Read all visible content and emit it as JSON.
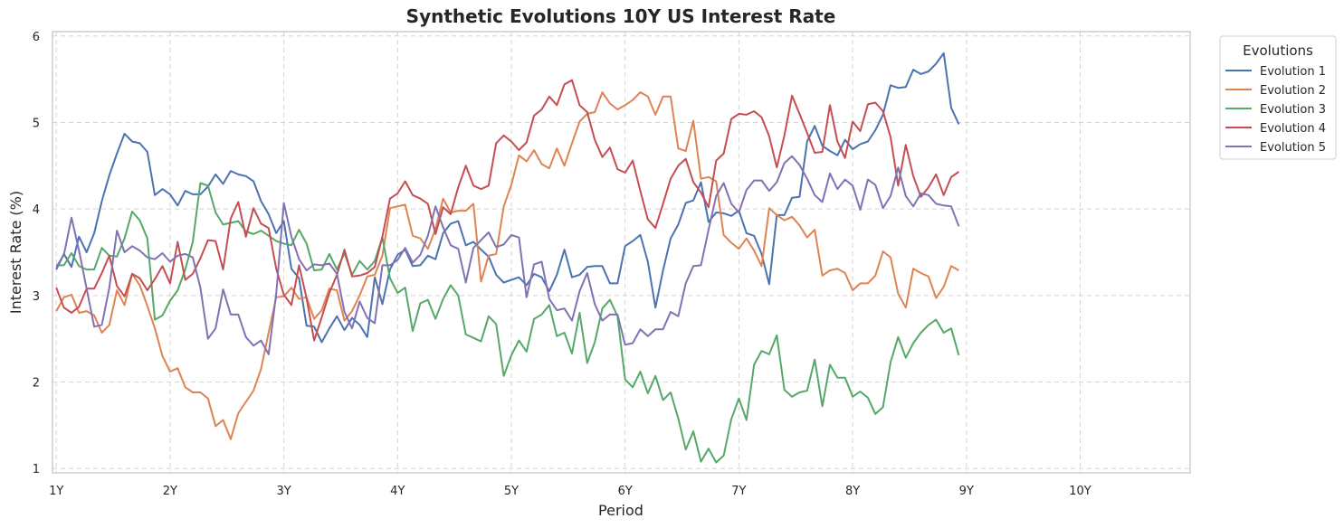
{
  "chart_data": {
    "type": "line",
    "title": "Synthetic Evolutions 10Y US Interest Rate",
    "xlabel": "Period",
    "ylabel": "Interest Rate (%)",
    "xlim": [
      -0.5,
      149.5
    ],
    "ylim": [
      0.95,
      6.05
    ],
    "x_ticks": [
      {
        "pos": 0,
        "label": "1Y"
      },
      {
        "pos": 15,
        "label": "2Y"
      },
      {
        "pos": 30,
        "label": "3Y"
      },
      {
        "pos": 45,
        "label": "4Y"
      },
      {
        "pos": 60,
        "label": "5Y"
      },
      {
        "pos": 75,
        "label": "6Y"
      },
      {
        "pos": 90,
        "label": "7Y"
      },
      {
        "pos": 105,
        "label": "8Y"
      },
      {
        "pos": 120,
        "label": "9Y"
      },
      {
        "pos": 135,
        "label": "10Y"
      }
    ],
    "y_ticks": [
      1,
      2,
      3,
      4,
      5,
      6
    ],
    "grid": true,
    "legend_title": "Evolutions",
    "legend_position": "outside top-right",
    "series": [
      {
        "name": "Evolution 1",
        "color": "#4c72b0",
        "values": [
          3.3,
          3.48,
          3.33,
          3.68,
          3.5,
          3.72,
          4.09,
          4.39,
          4.64,
          4.87,
          4.78,
          4.76,
          4.66,
          4.16,
          4.23,
          4.17,
          4.04,
          4.21,
          4.17,
          4.17,
          4.26,
          4.4,
          4.29,
          4.44,
          4.4,
          4.38,
          4.32,
          4.09,
          3.94,
          3.72,
          3.86,
          3.31,
          3.2,
          2.65,
          2.64,
          2.46,
          2.62,
          2.76,
          2.6,
          2.74,
          2.66,
          2.52,
          3.21,
          2.9,
          3.3,
          3.47,
          3.53,
          3.34,
          3.35,
          3.46,
          3.42,
          3.72,
          3.83,
          3.86,
          3.58,
          3.62,
          3.53,
          3.45,
          3.24,
          3.15,
          3.18,
          3.21,
          3.12,
          3.25,
          3.21,
          3.05,
          3.24,
          3.53,
          3.21,
          3.24,
          3.33,
          3.34,
          3.34,
          3.14,
          3.14,
          3.57,
          3.63,
          3.7,
          3.39,
          2.86,
          3.29,
          3.66,
          3.82,
          4.07,
          4.1,
          4.31,
          3.85,
          3.96,
          3.95,
          3.92,
          3.98,
          3.72,
          3.69,
          3.48,
          3.13,
          3.93,
          3.93,
          4.13,
          4.14,
          4.78,
          4.96,
          4.73,
          4.67,
          4.62,
          4.8,
          4.69,
          4.75,
          4.78,
          4.91,
          5.09,
          5.43,
          5.4,
          5.41,
          5.61,
          5.56,
          5.59,
          5.68,
          5.8,
          5.17,
          4.98
        ]
      },
      {
        "name": "Evolution 2",
        "color": "#dd8452",
        "values": [
          2.82,
          2.98,
          3.01,
          2.8,
          2.82,
          2.77,
          2.57,
          2.66,
          3.06,
          2.89,
          3.25,
          3.12,
          2.88,
          2.62,
          2.3,
          2.12,
          2.16,
          1.94,
          1.88,
          1.88,
          1.81,
          1.49,
          1.56,
          1.34,
          1.64,
          1.77,
          1.9,
          2.15,
          2.57,
          2.98,
          2.99,
          3.09,
          2.96,
          2.98,
          2.73,
          2.83,
          3.08,
          3.06,
          2.71,
          2.82,
          3.0,
          3.22,
          3.24,
          3.46,
          4.01,
          4.03,
          4.05,
          3.69,
          3.66,
          3.54,
          3.77,
          4.12,
          3.96,
          3.98,
          3.98,
          4.06,
          3.16,
          3.46,
          3.48,
          4.03,
          4.28,
          4.62,
          4.55,
          4.68,
          4.52,
          4.47,
          4.7,
          4.5,
          4.76,
          5.01,
          5.1,
          5.12,
          5.35,
          5.22,
          5.15,
          5.2,
          5.26,
          5.35,
          5.3,
          5.09,
          5.3,
          5.3,
          4.7,
          4.67,
          5.02,
          4.35,
          4.37,
          4.32,
          3.7,
          3.61,
          3.54,
          3.66,
          3.52,
          3.34,
          4.01,
          3.93,
          3.87,
          3.91,
          3.81,
          3.67,
          3.76,
          3.23,
          3.29,
          3.31,
          3.26,
          3.06,
          3.14,
          3.14,
          3.23,
          3.51,
          3.44,
          3.02,
          2.86,
          3.31,
          3.26,
          3.22,
          2.97,
          3.1,
          3.34,
          3.29
        ]
      },
      {
        "name": "Evolution 3",
        "color": "#55a868",
        "values": [
          3.35,
          3.35,
          3.49,
          3.34,
          3.3,
          3.3,
          3.55,
          3.46,
          3.45,
          3.66,
          3.97,
          3.87,
          3.66,
          2.72,
          2.77,
          2.94,
          3.06,
          3.3,
          3.62,
          4.3,
          4.27,
          3.96,
          3.82,
          3.84,
          3.86,
          3.74,
          3.71,
          3.75,
          3.69,
          3.63,
          3.6,
          3.58,
          3.76,
          3.6,
          3.29,
          3.3,
          3.48,
          3.3,
          3.49,
          3.24,
          3.4,
          3.3,
          3.4,
          3.67,
          3.2,
          3.03,
          3.09,
          2.59,
          2.91,
          2.95,
          2.73,
          2.96,
          3.12,
          3.0,
          2.55,
          2.51,
          2.47,
          2.76,
          2.67,
          2.07,
          2.31,
          2.48,
          2.35,
          2.73,
          2.78,
          2.89,
          2.53,
          2.57,
          2.33,
          2.8,
          2.22,
          2.46,
          2.85,
          2.95,
          2.76,
          2.03,
          1.94,
          2.12,
          1.87,
          2.07,
          1.79,
          1.88,
          1.58,
          1.22,
          1.43,
          1.08,
          1.23,
          1.07,
          1.15,
          1.57,
          1.81,
          1.56,
          2.2,
          2.36,
          2.32,
          2.54,
          1.91,
          1.83,
          1.88,
          1.9,
          2.26,
          1.72,
          2.2,
          2.05,
          2.05,
          1.83,
          1.89,
          1.82,
          1.63,
          1.71,
          2.23,
          2.52,
          2.28,
          2.45,
          2.57,
          2.66,
          2.72,
          2.57,
          2.62,
          2.31
        ]
      },
      {
        "name": "Evolution 4",
        "color": "#c44e52",
        "values": [
          3.09,
          2.86,
          2.8,
          2.87,
          3.08,
          3.08,
          3.26,
          3.46,
          3.11,
          2.99,
          3.25,
          3.2,
          3.06,
          3.19,
          3.34,
          3.14,
          3.62,
          3.18,
          3.25,
          3.43,
          3.64,
          3.63,
          3.3,
          3.89,
          4.08,
          3.68,
          4.01,
          3.83,
          3.78,
          3.31,
          3.01,
          2.89,
          3.35,
          2.97,
          2.48,
          2.75,
          3.03,
          3.24,
          3.53,
          3.22,
          3.23,
          3.26,
          3.33,
          3.68,
          4.12,
          4.18,
          4.32,
          4.16,
          4.12,
          4.06,
          3.71,
          4.02,
          3.94,
          4.25,
          4.5,
          4.27,
          4.23,
          4.27,
          4.76,
          4.85,
          4.78,
          4.68,
          4.77,
          5.08,
          5.15,
          5.3,
          5.2,
          5.44,
          5.49,
          5.2,
          5.12,
          4.8,
          4.6,
          4.71,
          4.46,
          4.42,
          4.56,
          4.21,
          3.88,
          3.78,
          4.06,
          4.35,
          4.5,
          4.58,
          4.31,
          4.19,
          4.02,
          4.56,
          4.64,
          5.04,
          5.1,
          5.09,
          5.13,
          5.06,
          4.84,
          4.48,
          4.85,
          5.31,
          5.1,
          4.88,
          4.65,
          4.66,
          5.2,
          4.78,
          4.59,
          5.01,
          4.9,
          5.21,
          5.23,
          5.13,
          4.83,
          4.27,
          4.74,
          4.38,
          4.14,
          4.25,
          4.4,
          4.16,
          4.37,
          4.43
        ]
      },
      {
        "name": "Evolution 5",
        "color": "#8172b3",
        "values": [
          3.33,
          3.47,
          3.9,
          3.52,
          3.08,
          2.64,
          2.66,
          3.09,
          3.75,
          3.5,
          3.57,
          3.52,
          3.44,
          3.42,
          3.49,
          3.39,
          3.46,
          3.48,
          3.44,
          3.09,
          2.5,
          2.62,
          3.07,
          2.78,
          2.78,
          2.52,
          2.42,
          2.48,
          2.32,
          3.02,
          4.07,
          3.68,
          3.42,
          3.29,
          3.36,
          3.35,
          3.37,
          3.25,
          2.81,
          2.62,
          2.93,
          2.74,
          2.68,
          3.35,
          3.35,
          3.41,
          3.55,
          3.38,
          3.47,
          3.69,
          4.03,
          3.79,
          3.58,
          3.54,
          3.15,
          3.55,
          3.64,
          3.73,
          3.56,
          3.59,
          3.7,
          3.67,
          2.98,
          3.36,
          3.39,
          2.96,
          2.83,
          2.85,
          2.71,
          3.05,
          3.26,
          2.9,
          2.71,
          2.78,
          2.78,
          2.43,
          2.45,
          2.61,
          2.53,
          2.61,
          2.61,
          2.81,
          2.76,
          3.14,
          3.34,
          3.35,
          3.76,
          4.15,
          4.3,
          4.06,
          3.96,
          4.22,
          4.33,
          4.33,
          4.21,
          4.31,
          4.53,
          4.61,
          4.51,
          4.35,
          4.16,
          4.08,
          4.41,
          4.23,
          4.34,
          4.27,
          3.99,
          4.34,
          4.28,
          4.01,
          4.15,
          4.48,
          4.15,
          4.03,
          4.18,
          4.16,
          4.06,
          4.04,
          4.03,
          3.8
        ]
      }
    ]
  }
}
